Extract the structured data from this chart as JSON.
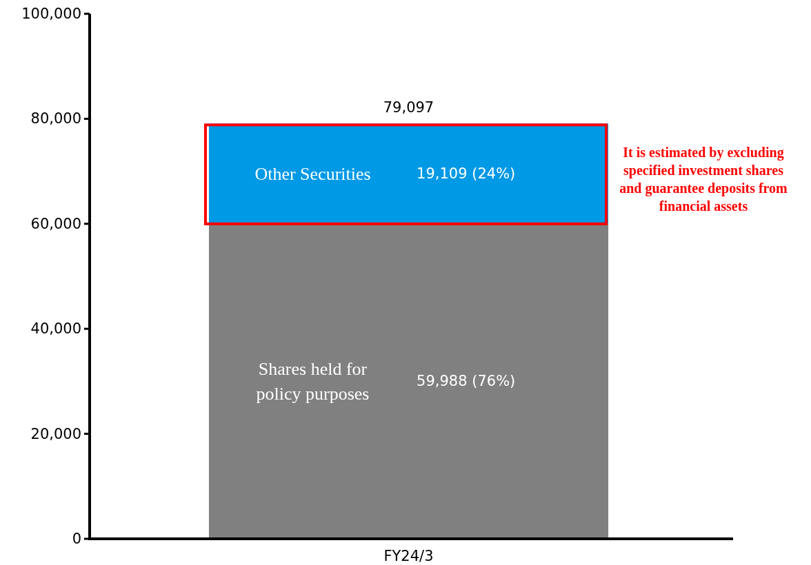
{
  "chart_data": {
    "type": "bar",
    "stacked": true,
    "categories": [
      "FY24/3"
    ],
    "series": [
      {
        "name": "Shares held for policy purposes",
        "color": "#808080",
        "values": [
          59988
        ],
        "value_labels": [
          "59,988 (76%)"
        ]
      },
      {
        "name": "Other Securities",
        "color": "#0099e6",
        "values": [
          19109
        ],
        "value_labels": [
          "19,109 (24%)"
        ]
      }
    ],
    "totals": [
      "79,097"
    ],
    "ylim": [
      0,
      100000
    ],
    "yticks": [
      {
        "value": 0,
        "label": "0"
      },
      {
        "value": 20000,
        "label": "20,000"
      },
      {
        "value": 40000,
        "label": "40,000"
      },
      {
        "value": 60000,
        "label": "60,000"
      },
      {
        "value": 80000,
        "label": "80,000"
      },
      {
        "value": 100000,
        "label": "100,000"
      }
    ],
    "grid": false,
    "annotations": [
      "It is estimated by excluding specified investment shares and guarantee deposits from financial assets"
    ]
  }
}
